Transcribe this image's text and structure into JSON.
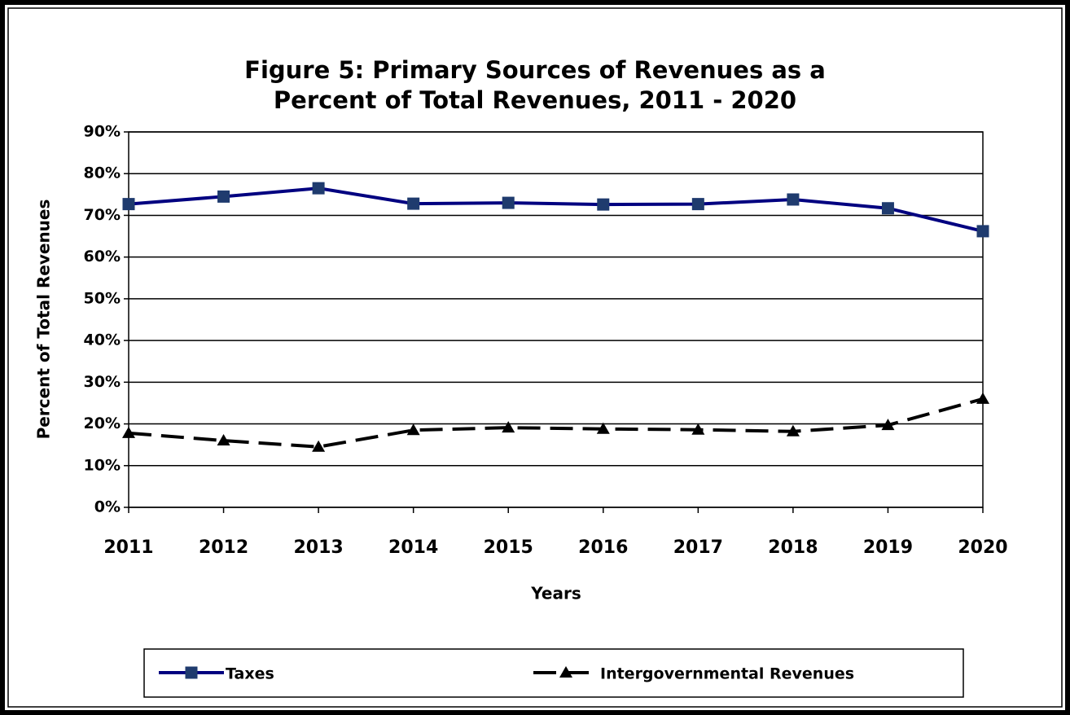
{
  "chart_data": {
    "type": "line",
    "title": [
      "Figure 5:  Primary Sources of Revenues as a",
      "Percent of Total Revenues, 2011 - 2020"
    ],
    "x_label": "Years",
    "y_label": "Percent of Total Revenues",
    "categories": [
      "2011",
      "2012",
      "2013",
      "2014",
      "2015",
      "2016",
      "2017",
      "2018",
      "2019",
      "2020"
    ],
    "series": [
      {
        "name": "Taxes",
        "color": "#000080",
        "marker": "square",
        "marker_color": "#1f3b6e",
        "dash": false,
        "values": [
          72.7,
          74.5,
          76.5,
          72.8,
          73.0,
          72.6,
          72.7,
          73.8,
          71.7,
          66.2
        ]
      },
      {
        "name": "Intergovernmental Revenues",
        "color": "#000000",
        "marker": "triangle",
        "marker_color": "#000000",
        "dash": true,
        "values": [
          17.8,
          16.0,
          14.5,
          18.5,
          19.1,
          18.8,
          18.6,
          18.2,
          19.7,
          26.0
        ]
      }
    ],
    "ylim": [
      0,
      90
    ],
    "yticks": [
      {
        "value": 0,
        "label": "0%"
      },
      {
        "value": 10,
        "label": "10%"
      },
      {
        "value": 20,
        "label": "20%"
      },
      {
        "value": 30,
        "label": "30%"
      },
      {
        "value": 40,
        "label": "40%"
      },
      {
        "value": 50,
        "label": "50%"
      },
      {
        "value": 60,
        "label": "60%"
      },
      {
        "value": 70,
        "label": "70%"
      },
      {
        "value": 80,
        "label": "80%"
      },
      {
        "value": 90,
        "label": "90%"
      }
    ],
    "grid": true,
    "legend": "bottom"
  }
}
